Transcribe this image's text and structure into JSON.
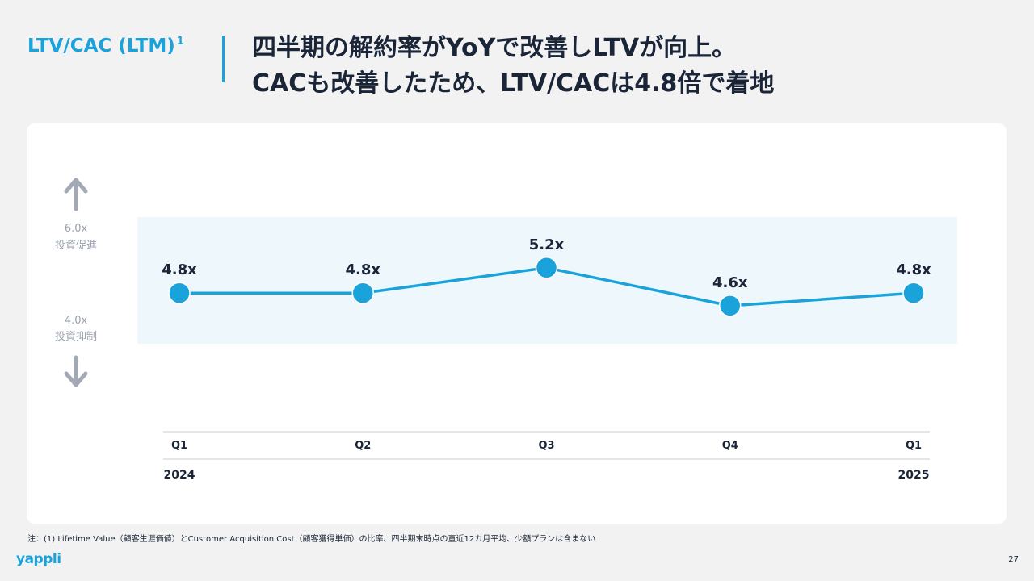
{
  "header": {
    "section_label": "LTV/CAC (LTM)",
    "section_label_note": "1",
    "headline_line1": "四半期の解約率がYoYで改善しLTVが向上。",
    "headline_line2": "CACも改善したため、LTV/CACは4.8倍で着地"
  },
  "chart_data": {
    "type": "line",
    "categories": [
      "Q1",
      "Q2",
      "Q3",
      "Q4",
      "Q1"
    ],
    "year_labels": [
      "2024",
      "",
      "",
      "",
      "2025"
    ],
    "series": [
      {
        "values": [
          4.8,
          4.8,
          5.2,
          4.6,
          4.8
        ],
        "labels": [
          "4.8x",
          "4.8x",
          "5.2x",
          "4.6x",
          "4.8x"
        ]
      }
    ],
    "reference_band": {
      "upper": 6.0,
      "lower": 4.0,
      "upper_value_label": "6.0x",
      "upper_text": "投資促進",
      "lower_value_label": "4.0x",
      "lower_text": "投資抑制"
    },
    "ylim": [
      3.4,
      6.4
    ],
    "grid": false,
    "colors": {
      "line": "#1aa3db",
      "band": "#edf7fc",
      "arrow": "#a2a9b5",
      "axis": "#c8ccd2"
    }
  },
  "footer": {
    "footnote": "注：(1) Lifetime Value（顧客生涯価値）とCustomer Acquisition Cost（顧客獲得単価）の比率、四半期末時点の直近12カ月平均、少額プランは含まない",
    "logo": "yappli",
    "page_number": "27"
  }
}
